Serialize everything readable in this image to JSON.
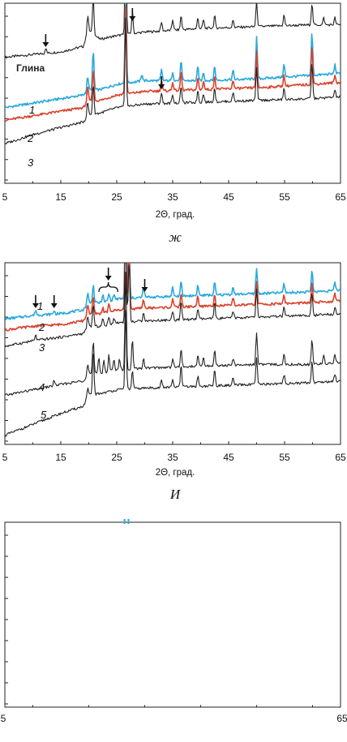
{
  "colors": {
    "cyan": "#29a9dc",
    "red": "#d9432c",
    "black": "#222222"
  },
  "chart_data": [
    {
      "type": "line",
      "panel": "zh",
      "caption": "ж",
      "xlabel": "2Θ, град.",
      "ylabel": "",
      "xlim": [
        5,
        65
      ],
      "ylim": [
        0,
        100
      ],
      "x_ticks": [
        "5",
        "15",
        "25",
        "35",
        "45",
        "55",
        "65"
      ],
      "annotation": "Глина",
      "grid": false,
      "series": [
        {
          "name": "Глина",
          "label": "",
          "color": "black",
          "base": [
            [
              5,
              70
            ],
            [
              10,
              71.5
            ],
            [
              15,
              73
            ],
            [
              19,
              76
            ],
            [
              20,
              85
            ],
            [
              22,
              80
            ],
            [
              25,
              82
            ],
            [
              30,
              84
            ],
            [
              40,
              86
            ],
            [
              50,
              87
            ],
            [
              60,
              88
            ],
            [
              65,
              88
            ]
          ],
          "peaks": [
            [
              12.3,
              3
            ],
            [
              19.8,
              10
            ],
            [
              20.8,
              20
            ],
            [
              26.6,
              60
            ],
            [
              27.8,
              12
            ],
            [
              33,
              5
            ],
            [
              35,
              6
            ],
            [
              36.5,
              8
            ],
            [
              39.5,
              6
            ],
            [
              40.5,
              5
            ],
            [
              42.5,
              7
            ],
            [
              45.8,
              4
            ],
            [
              50,
              14
            ],
            [
              54.9,
              6
            ],
            [
              59.9,
              12
            ],
            [
              62,
              4
            ],
            [
              64,
              4
            ]
          ]
        },
        {
          "name": "1",
          "label": "1",
          "color": "cyan",
          "base": [
            [
              5,
              42
            ],
            [
              10,
              44.5
            ],
            [
              15,
              47
            ],
            [
              19,
              49
            ],
            [
              20,
              52
            ],
            [
              22,
              52
            ],
            [
              25,
              55
            ],
            [
              30,
              57
            ],
            [
              40,
              57
            ],
            [
              50,
              58
            ],
            [
              60,
              60
            ],
            [
              65,
              61
            ]
          ],
          "peaks": [
            [
              19.8,
              8
            ],
            [
              20.8,
              22
            ],
            [
              26.6,
              50
            ],
            [
              29.5,
              4
            ],
            [
              33,
              6
            ],
            [
              35,
              5
            ],
            [
              36.5,
              11
            ],
            [
              39.5,
              8
            ],
            [
              40.5,
              5
            ],
            [
              42.5,
              8
            ],
            [
              45.8,
              5
            ],
            [
              50,
              23
            ],
            [
              54.9,
              7
            ],
            [
              59.9,
              24
            ],
            [
              64,
              5
            ]
          ]
        },
        {
          "name": "2",
          "label": "2",
          "color": "red",
          "base": [
            [
              5,
              35
            ],
            [
              10,
              37.5
            ],
            [
              15,
              40
            ],
            [
              19,
              42
            ],
            [
              20,
              46
            ],
            [
              22,
              46
            ],
            [
              25,
              49
            ],
            [
              30,
              51
            ],
            [
              40,
              52
            ],
            [
              50,
              53
            ],
            [
              60,
              55
            ],
            [
              65,
              56
            ]
          ],
          "peaks": [
            [
              19.8,
              8
            ],
            [
              20.8,
              18
            ],
            [
              26.6,
              50
            ],
            [
              33,
              6
            ],
            [
              35,
              5
            ],
            [
              36.5,
              11
            ],
            [
              39.5,
              7
            ],
            [
              40.5,
              5
            ],
            [
              42.5,
              8
            ],
            [
              45.8,
              5
            ],
            [
              50,
              20
            ],
            [
              54.9,
              6
            ],
            [
              59.9,
              22
            ],
            [
              64,
              4
            ]
          ]
        },
        {
          "name": "3",
          "label": "3",
          "color": "black",
          "base": [
            [
              5,
              22
            ],
            [
              10,
              27
            ],
            [
              15,
              31
            ],
            [
              19,
              34
            ],
            [
              20,
              38
            ],
            [
              22,
              39
            ],
            [
              25,
              42
            ],
            [
              30,
              44
            ],
            [
              40,
              45
            ],
            [
              50,
              46
            ],
            [
              60,
              47
            ],
            [
              65,
              48
            ]
          ],
          "peaks": [
            [
              19.8,
              8
            ],
            [
              20.8,
              17
            ],
            [
              26.6,
              50
            ],
            [
              33,
              6
            ],
            [
              35,
              5
            ],
            [
              36.5,
              10
            ],
            [
              39.5,
              7
            ],
            [
              40.5,
              5
            ],
            [
              42.5,
              8
            ],
            [
              45.8,
              5
            ],
            [
              50,
              18
            ],
            [
              54.9,
              6
            ],
            [
              59.9,
              20
            ],
            [
              64,
              4
            ]
          ]
        }
      ],
      "arrows": [
        12.3,
        27.8,
        33
      ]
    },
    {
      "type": "line",
      "panel": "i",
      "caption": "И",
      "xlabel": "2Θ, град.",
      "ylabel": "",
      "xlim": [
        5,
        65
      ],
      "ylim": [
        0,
        100
      ],
      "x_ticks": [
        "5",
        "15",
        "25",
        "35",
        "45",
        "55",
        "65"
      ],
      "grid": false,
      "series": [
        {
          "name": "1",
          "label": "1",
          "color": "cyan",
          "base": [
            [
              5,
              69
            ],
            [
              10,
              71
            ],
            [
              15,
              72
            ],
            [
              19,
              74
            ],
            [
              20,
              78
            ],
            [
              22,
              78
            ],
            [
              25,
              80
            ],
            [
              30,
              81
            ],
            [
              40,
              82
            ],
            [
              50,
              83
            ],
            [
              60,
              84
            ],
            [
              65,
              85
            ]
          ],
          "peaks": [
            [
              10.5,
              3
            ],
            [
              13.8,
              2
            ],
            [
              19.8,
              6
            ],
            [
              20.8,
              10
            ],
            [
              22.5,
              4
            ],
            [
              23.6,
              4
            ],
            [
              24.5,
              3
            ],
            [
              26.6,
              60
            ],
            [
              27.2,
              30
            ],
            [
              29.8,
              6
            ],
            [
              35,
              5
            ],
            [
              36.5,
              8
            ],
            [
              39.5,
              6
            ],
            [
              42.5,
              7
            ],
            [
              45.8,
              4
            ],
            [
              50,
              14
            ],
            [
              54.9,
              5
            ],
            [
              59.9,
              12
            ],
            [
              64,
              4
            ]
          ]
        },
        {
          "name": "2",
          "label": "2",
          "color": "red",
          "base": [
            [
              5,
              63
            ],
            [
              10,
              65
            ],
            [
              15,
              66
            ],
            [
              19,
              68
            ],
            [
              20,
              72
            ],
            [
              22,
              72
            ],
            [
              25,
              74
            ],
            [
              30,
              75
            ],
            [
              40,
              76
            ],
            [
              50,
              77
            ],
            [
              60,
              78
            ],
            [
              65,
              79
            ]
          ],
          "peaks": [
            [
              19.8,
              6
            ],
            [
              20.8,
              9
            ],
            [
              22.5,
              3
            ],
            [
              23.6,
              4
            ],
            [
              26.6,
              60
            ],
            [
              27.2,
              30
            ],
            [
              29.8,
              5
            ],
            [
              35,
              5
            ],
            [
              36.5,
              8
            ],
            [
              39.5,
              6
            ],
            [
              42.5,
              7
            ],
            [
              45.8,
              4
            ],
            [
              50,
              13
            ],
            [
              54.9,
              5
            ],
            [
              59.9,
              11
            ],
            [
              64,
              4
            ]
          ]
        },
        {
          "name": "3",
          "label": "3",
          "color": "black",
          "base": [
            [
              5,
              54
            ],
            [
              10,
              57
            ],
            [
              15,
              59
            ],
            [
              19,
              61
            ],
            [
              20,
              65
            ],
            [
              22,
              65
            ],
            [
              25,
              67
            ],
            [
              30,
              68
            ],
            [
              40,
              69
            ],
            [
              50,
              70
            ],
            [
              60,
              71
            ],
            [
              65,
              72
            ]
          ],
          "peaks": [
            [
              10.5,
              3
            ],
            [
              19.8,
              6
            ],
            [
              20.8,
              12
            ],
            [
              22.5,
              4
            ],
            [
              23.6,
              4
            ],
            [
              24.5,
              3
            ],
            [
              26.6,
              60
            ],
            [
              27.2,
              35
            ],
            [
              29.8,
              5
            ],
            [
              35,
              5
            ],
            [
              36.5,
              10
            ],
            [
              39.5,
              6
            ],
            [
              42.5,
              9
            ],
            [
              45.8,
              4
            ],
            [
              50,
              15
            ],
            [
              54.9,
              5
            ],
            [
              59.9,
              13
            ],
            [
              64,
              4
            ]
          ]
        },
        {
          "name": "4",
          "label": "4",
          "color": "black",
          "base": [
            [
              5,
              27
            ],
            [
              10,
              30
            ],
            [
              15,
              33
            ],
            [
              19,
              35
            ],
            [
              20,
              39
            ],
            [
              22,
              39
            ],
            [
              25,
              41
            ],
            [
              30,
              42
            ],
            [
              40,
              43
            ],
            [
              50,
              44
            ],
            [
              60,
              44
            ],
            [
              65,
              45
            ]
          ],
          "peaks": [
            [
              13.8,
              3
            ],
            [
              19.8,
              6
            ],
            [
              20.8,
              18
            ],
            [
              21.8,
              9
            ],
            [
              22.7,
              7
            ],
            [
              23.6,
              9
            ],
            [
              24.5,
              7
            ],
            [
              25.5,
              6
            ],
            [
              26.6,
              55
            ],
            [
              27.8,
              16
            ],
            [
              29.8,
              5
            ],
            [
              35,
              5
            ],
            [
              36.5,
              10
            ],
            [
              39.5,
              6
            ],
            [
              40.5,
              5
            ],
            [
              42.5,
              9
            ],
            [
              45.8,
              4
            ],
            [
              50,
              18
            ],
            [
              54.9,
              6
            ],
            [
              59.9,
              14
            ],
            [
              62,
              5
            ],
            [
              64,
              5
            ]
          ]
        },
        {
          "name": "5",
          "label": "5",
          "color": "black",
          "base": [
            [
              5,
              5
            ],
            [
              10,
              11
            ],
            [
              15,
              17
            ],
            [
              19,
              21
            ],
            [
              20,
              27
            ],
            [
              22,
              28
            ],
            [
              25,
              30
            ],
            [
              30,
              31
            ],
            [
              40,
              32
            ],
            [
              50,
              33
            ],
            [
              60,
              34
            ],
            [
              65,
              35
            ]
          ],
          "peaks": [
            [
              19.8,
              5
            ],
            [
              20.8,
              25
            ],
            [
              26.6,
              45
            ],
            [
              27.8,
              10
            ],
            [
              33,
              4
            ],
            [
              35,
              4
            ],
            [
              36.5,
              12
            ],
            [
              39.5,
              6
            ],
            [
              42.5,
              9
            ],
            [
              45.8,
              4
            ],
            [
              50,
              15
            ],
            [
              54.9,
              5
            ],
            [
              59.9,
              12
            ],
            [
              64,
              4
            ]
          ]
        }
      ],
      "arrows": [
        10.5,
        13.8,
        23.5,
        30
      ],
      "brace": [
        21.8,
        25.2
      ]
    },
    {
      "type": "line",
      "panel": "third",
      "xlim": [
        5,
        65
      ],
      "ylim": [
        0,
        100
      ],
      "x_ticks": [
        "5",
        "65"
      ],
      "series": []
    }
  ]
}
